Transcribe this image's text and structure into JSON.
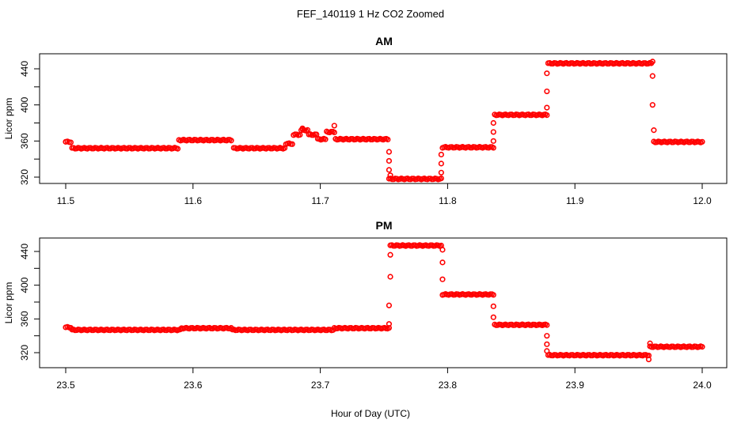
{
  "figure": {
    "title": "FEF_140119  1 Hz CO2 Zoomed",
    "xlabel": "Hour of Day (UTC)",
    "marker_color": "#ff0000"
  },
  "chart_data": [
    {
      "type": "scatter",
      "title": "AM",
      "xlabel": "Hour of Day (UTC)",
      "ylabel": "Licor ppm",
      "xlim": [
        11.5,
        12.0
      ],
      "ylim": [
        314,
        457
      ],
      "x_ticks": [
        11.5,
        11.6,
        11.7,
        11.8,
        11.9,
        12.0
      ],
      "x_tick_labels": [
        "11.5",
        "11.6",
        "11.7",
        "11.8",
        "11.9",
        "12.0"
      ],
      "y_ticks": [
        320,
        360,
        400,
        440
      ],
      "y_tick_labels": [
        "320",
        "360",
        "400",
        "440"
      ],
      "series": [
        {
          "color": "#ff0000",
          "segments": [
            {
              "x0": 11.5,
              "x1": 11.504,
              "y": 359
            },
            {
              "x0": 11.505,
              "x1": 11.588,
              "y": 352
            },
            {
              "x0": 11.589,
              "x1": 11.63,
              "y": 361
            },
            {
              "x0": 11.632,
              "x1": 11.672,
              "y": 352
            },
            {
              "x0": 11.673,
              "x1": 11.678,
              "y": 357
            },
            {
              "x0": 11.679,
              "x1": 11.684,
              "y": 367
            },
            {
              "x0": 11.685,
              "x1": 11.69,
              "y": 372
            },
            {
              "x0": 11.691,
              "x1": 11.697,
              "y": 367
            },
            {
              "x0": 11.698,
              "x1": 11.704,
              "y": 362
            },
            {
              "x0": 11.705,
              "x1": 11.711,
              "y": 370
            },
            {
              "x0": 11.712,
              "x1": 11.753,
              "y": 362
            },
            {
              "x0": 11.754,
              "x1": 11.795,
              "y": 318
            },
            {
              "x0": 11.796,
              "x1": 11.836,
              "y": 353
            },
            {
              "x0": 11.837,
              "x1": 11.878,
              "y": 389
            },
            {
              "x0": 11.879,
              "x1": 11.96,
              "y": 446
            },
            {
              "x0": 11.962,
              "x1": 12.0,
              "y": 359
            }
          ],
          "points": [
            [
              11.754,
              348
            ],
            [
              11.754,
              338
            ],
            [
              11.754,
              328
            ],
            [
              11.755,
              322
            ],
            [
              11.795,
              325
            ],
            [
              11.795,
              335
            ],
            [
              11.795,
              345
            ],
            [
              11.836,
              360
            ],
            [
              11.836,
              370
            ],
            [
              11.836,
              380
            ],
            [
              11.878,
              397
            ],
            [
              11.878,
              415
            ],
            [
              11.878,
              435
            ],
            [
              11.961,
              448
            ],
            [
              11.961,
              432
            ],
            [
              11.961,
              400
            ],
            [
              11.962,
              372
            ],
            [
              11.686,
              374
            ],
            [
              11.711,
              377
            ]
          ]
        }
      ]
    },
    {
      "type": "scatter",
      "title": "PM",
      "xlabel": "Hour of Day (UTC)",
      "ylabel": "Licor ppm",
      "xlim": [
        23.5,
        24.0
      ],
      "ylim": [
        307,
        456
      ],
      "x_ticks": [
        23.5,
        23.6,
        23.7,
        23.8,
        23.9,
        24.0
      ],
      "x_tick_labels": [
        "23.5",
        "23.6",
        "23.7",
        "23.8",
        "23.9",
        "24.0"
      ],
      "y_ticks": [
        320,
        360,
        400,
        440
      ],
      "y_tick_labels": [
        "320",
        "360",
        "400",
        "440"
      ],
      "series": [
        {
          "color": "#ff0000",
          "segments": [
            {
              "x0": 23.5,
              "x1": 23.504,
              "y": 350
            },
            {
              "x0": 23.505,
              "x1": 23.59,
              "y": 347
            },
            {
              "x0": 23.591,
              "x1": 23.63,
              "y": 349
            },
            {
              "x0": 23.631,
              "x1": 23.71,
              "y": 347
            },
            {
              "x0": 23.711,
              "x1": 23.754,
              "y": 349
            },
            {
              "x0": 23.755,
              "x1": 23.795,
              "y": 447
            },
            {
              "x0": 23.796,
              "x1": 23.836,
              "y": 389
            },
            {
              "x0": 23.837,
              "x1": 23.878,
              "y": 353
            },
            {
              "x0": 23.879,
              "x1": 23.958,
              "y": 317
            },
            {
              "x0": 23.959,
              "x1": 24.0,
              "y": 327
            }
          ],
          "points": [
            [
              23.754,
              354
            ],
            [
              23.754,
              376
            ],
            [
              23.755,
              410
            ],
            [
              23.755,
              436
            ],
            [
              23.796,
              442
            ],
            [
              23.796,
              427
            ],
            [
              23.796,
              407
            ],
            [
              23.836,
              375
            ],
            [
              23.836,
              362
            ],
            [
              23.878,
              340
            ],
            [
              23.878,
              330
            ],
            [
              23.878,
              322
            ],
            [
              23.958,
              312
            ],
            [
              23.959,
              331
            ]
          ]
        }
      ]
    }
  ]
}
